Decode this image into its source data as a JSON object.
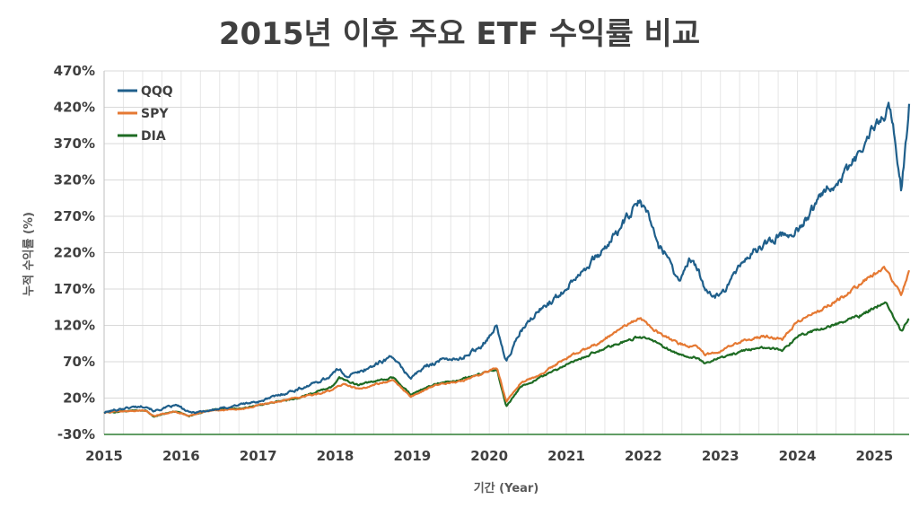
{
  "chart_data": {
    "type": "line",
    "title": "2015년 이후 주요 ETF 수익률 비교",
    "xlabel": "기간 (Year)",
    "ylabel": "누적 수익률 (%)",
    "x_ticks": [
      "2015",
      "2016",
      "2017",
      "2018",
      "2019",
      "2020",
      "2021",
      "2022",
      "2023",
      "2024",
      "2025"
    ],
    "y_ticks": [
      "-30%",
      "20%",
      "70%",
      "120%",
      "170%",
      "220%",
      "270%",
      "320%",
      "370%",
      "420%",
      "470%"
    ],
    "xlim": [
      2015,
      2025.45
    ],
    "ylim": [
      -30,
      470
    ],
    "grid": true,
    "legend_position": "top-left",
    "series": [
      {
        "name": "QQQ",
        "color": "#1f5f8b",
        "x": [
          2015.0,
          2015.2,
          2015.4,
          2015.55,
          2015.65,
          2015.85,
          2015.95,
          2016.1,
          2016.3,
          2016.5,
          2016.8,
          2017.0,
          2017.3,
          2017.6,
          2017.9,
          2018.05,
          2018.15,
          2018.3,
          2018.5,
          2018.75,
          2018.85,
          2018.98,
          2019.2,
          2019.45,
          2019.6,
          2019.9,
          2020.1,
          2020.15,
          2020.22,
          2020.4,
          2020.6,
          2020.75,
          2020.9,
          2021.1,
          2021.3,
          2021.5,
          2021.7,
          2021.95,
          2022.05,
          2022.2,
          2022.35,
          2022.45,
          2022.6,
          2022.7,
          2022.8,
          2022.95,
          2023.1,
          2023.3,
          2023.55,
          2023.8,
          2024.0,
          2024.2,
          2024.35,
          2024.5,
          2024.6,
          2024.8,
          2024.95,
          2025.1,
          2025.2,
          2025.28,
          2025.35,
          2025.45
        ],
        "values": [
          0,
          5,
          8,
          9,
          2,
          8,
          10,
          0,
          2,
          5,
          12,
          15,
          25,
          35,
          48,
          60,
          50,
          55,
          65,
          78,
          62,
          48,
          65,
          75,
          72,
          92,
          120,
          95,
          70,
          110,
          135,
          150,
          160,
          185,
          205,
          225,
          255,
          290,
          275,
          230,
          210,
          180,
          210,
          200,
          165,
          160,
          175,
          210,
          230,
          245,
          250,
          280,
          310,
          315,
          325,
          355,
          385,
          405,
          420,
          370,
          305,
          420
        ]
      },
      {
        "name": "SPY",
        "color": "#e57933",
        "x": [
          2015.0,
          2015.3,
          2015.55,
          2015.65,
          2015.9,
          2016.1,
          2016.4,
          2016.8,
          2017.0,
          2017.5,
          2017.95,
          2018.1,
          2018.3,
          2018.75,
          2018.98,
          2019.3,
          2019.6,
          2019.95,
          2020.1,
          2020.22,
          2020.4,
          2020.7,
          2021.0,
          2021.4,
          2021.7,
          2021.95,
          2022.2,
          2022.45,
          2022.7,
          2022.8,
          2023.0,
          2023.3,
          2023.6,
          2023.8,
          2024.0,
          2024.3,
          2024.6,
          2024.85,
          2025.0,
          2025.15,
          2025.28,
          2025.35,
          2025.45
        ],
        "values": [
          0,
          2,
          3,
          -5,
          2,
          -4,
          3,
          5,
          10,
          20,
          30,
          40,
          32,
          45,
          22,
          38,
          42,
          55,
          62,
          15,
          40,
          55,
          75,
          95,
          115,
          130,
          110,
          95,
          90,
          80,
          85,
          100,
          105,
          100,
          125,
          140,
          160,
          180,
          190,
          198,
          175,
          160,
          195
        ]
      },
      {
        "name": "DIA",
        "color": "#1e6b23",
        "x": [
          2015.0,
          2015.3,
          2015.55,
          2015.65,
          2015.9,
          2016.1,
          2016.4,
          2016.8,
          2017.0,
          2017.5,
          2017.95,
          2018.05,
          2018.3,
          2018.75,
          2018.98,
          2019.3,
          2019.6,
          2019.95,
          2020.1,
          2020.22,
          2020.4,
          2020.7,
          2021.0,
          2021.4,
          2021.7,
          2021.95,
          2022.2,
          2022.45,
          2022.7,
          2022.8,
          2023.0,
          2023.3,
          2023.6,
          2023.8,
          2024.0,
          2024.3,
          2024.6,
          2024.85,
          2025.0,
          2025.15,
          2025.28,
          2025.35,
          2025.45
        ],
        "values": [
          0,
          2,
          3,
          -6,
          2,
          -5,
          4,
          6,
          10,
          20,
          35,
          48,
          38,
          48,
          25,
          40,
          45,
          55,
          60,
          8,
          35,
          50,
          65,
          85,
          95,
          105,
          95,
          80,
          75,
          68,
          75,
          85,
          90,
          85,
          105,
          115,
          125,
          135,
          145,
          150,
          125,
          112,
          130
        ]
      }
    ]
  }
}
